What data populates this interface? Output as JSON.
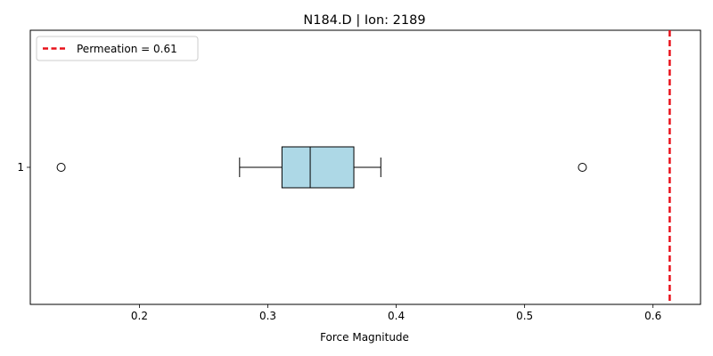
{
  "chart_data": {
    "type": "boxplot",
    "title": "N184.D | Ion: 2189",
    "xlabel": "Force Magnitude",
    "ylabel": "",
    "orientation": "horizontal",
    "xlim": [
      0.115,
      0.637
    ],
    "xticks": [
      0.2,
      0.3,
      0.4,
      0.5,
      0.6
    ],
    "xtick_labels": [
      "0.2",
      "0.3",
      "0.4",
      "0.5",
      "0.6"
    ],
    "categories": [
      "1"
    ],
    "box": {
      "whisker_low": 0.278,
      "q1": 0.311,
      "median": 0.333,
      "q3": 0.367,
      "whisker_high": 0.388,
      "outliers": [
        0.139,
        0.545
      ]
    },
    "reference_line": {
      "value": 0.613,
      "label": "Permeation = 0.61",
      "color": "#e8111a",
      "style": "dashed"
    },
    "colors": {
      "box_fill": "#add8e6",
      "box_edge": "#000000",
      "median": "#000000"
    },
    "legend": {
      "placement": "top-left"
    },
    "grid": false
  }
}
